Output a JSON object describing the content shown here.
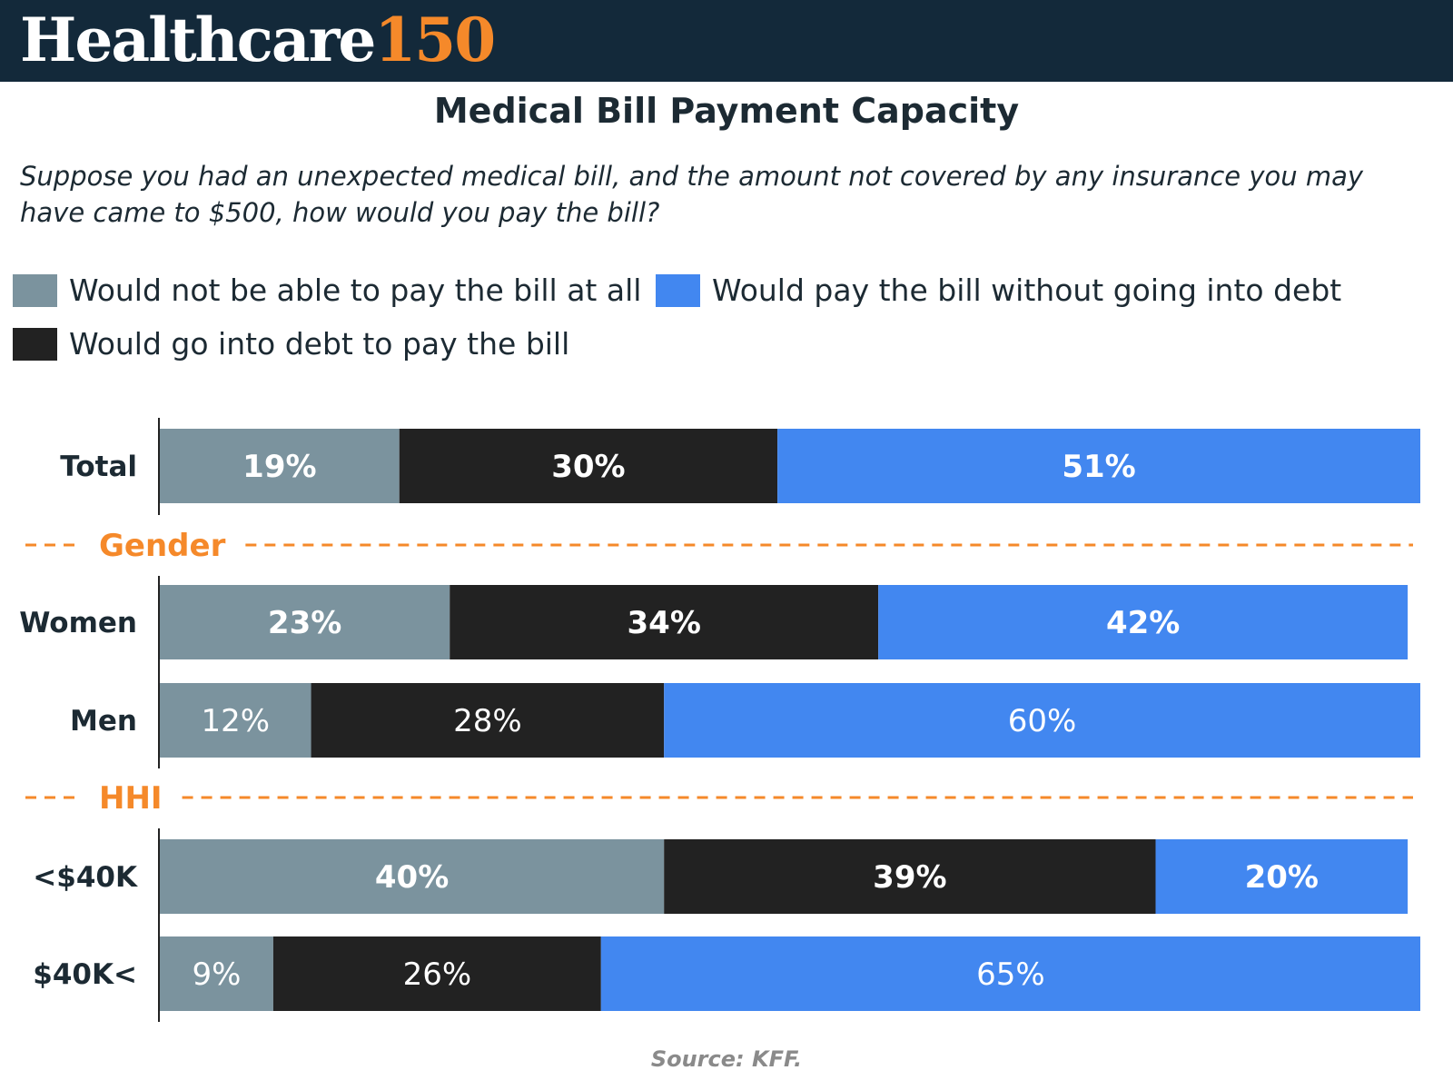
{
  "brand": {
    "name": "Healthcare",
    "number": "150"
  },
  "chart_data": {
    "type": "bar",
    "orientation": "horizontal",
    "stacked": true,
    "title": "Medical Bill Payment Capacity",
    "subtitle": "Suppose you had an unexpected medical bill, and the amount not covered by any insurance you may have came to $500, how would you pay the bill?",
    "xlim": [
      0,
      100
    ],
    "grid": false,
    "legend_position": "top-left",
    "categories": [
      "Total",
      "Women",
      "Men",
      "<$40K",
      "$40K<"
    ],
    "groups": [
      {
        "label": "Gender",
        "categories": [
          "Women",
          "Men"
        ]
      },
      {
        "label": "HHI",
        "categories": [
          "<$40K",
          "$40K<"
        ]
      }
    ],
    "series": [
      {
        "name": "Would not be able to pay the bill at all",
        "color": "#7b939e",
        "values": [
          19,
          23,
          12,
          40,
          9
        ],
        "labels": [
          "19%",
          "23%",
          "12%",
          "40%",
          "9%"
        ]
      },
      {
        "name": "Would go into debt to pay the bill",
        "color": "#222222",
        "values": [
          30,
          34,
          28,
          39,
          26
        ],
        "labels": [
          "30%",
          "34%",
          "28%",
          "39%",
          "26%"
        ]
      },
      {
        "name": "Would pay the bill without going into debt",
        "color": "#4287f0",
        "values": [
          51,
          42,
          60,
          20,
          65
        ],
        "labels": [
          "51%",
          "42%",
          "60%",
          "20%",
          "65%"
        ]
      }
    ],
    "bold_label_rows": [
      0,
      1,
      3
    ],
    "separator_color": "#f5892a",
    "source": "Source: KFF."
  }
}
